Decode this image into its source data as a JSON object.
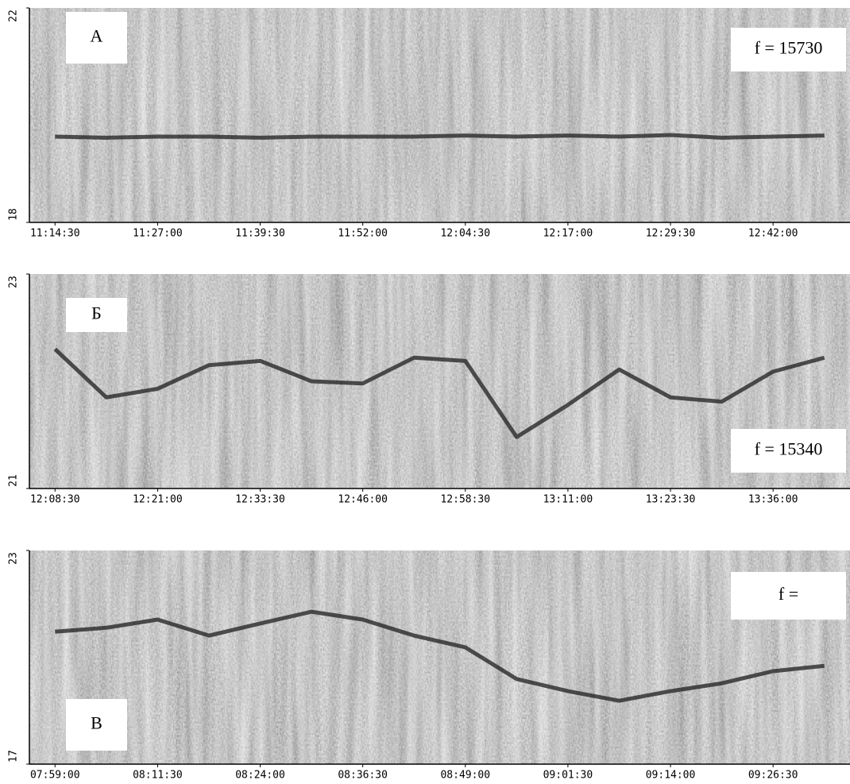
{
  "chart_data": [
    {
      "type": "line",
      "color": "#1e1e1e",
      "categories": [
        "11:14:30",
        null,
        "11:27:00",
        null,
        "11:39:30",
        null,
        "11:52:00",
        null,
        "12:04:30",
        null,
        "12:17:00",
        null,
        "12:29:30",
        null,
        "12:42:00",
        null
      ],
      "values": [
        19.6,
        19.58,
        19.6,
        19.6,
        19.58,
        19.6,
        19.6,
        19.6,
        19.62,
        19.6,
        19.62,
        19.6,
        19.63,
        19.58,
        19.6,
        19.62
      ],
      "ylim": [
        18,
        22
      ],
      "yticks": [
        18,
        22
      ],
      "annotations": [
        "А",
        "f = 15730"
      ]
    },
    {
      "type": "line",
      "color": "#1e1e1e",
      "categories": [
        "12:08:30",
        null,
        "12:21:00",
        null,
        "12:33:30",
        null,
        "12:46:00",
        null,
        "12:58:30",
        null,
        "13:11:00",
        null,
        "13:23:30",
        null,
        "13:36:00",
        null
      ],
      "values": [
        22.3,
        21.85,
        21.93,
        22.15,
        22.19,
        22.0,
        21.98,
        22.22,
        22.19,
        21.48,
        21.78,
        22.11,
        21.85,
        21.81,
        22.09,
        22.22
      ],
      "ylim": [
        21,
        23
      ],
      "yticks": [
        21,
        23
      ],
      "annotations": [
        "Б",
        "f = 15340"
      ]
    },
    {
      "type": "line",
      "color": "#1e1e1e",
      "categories": [
        "07:59:00",
        null,
        "08:11:30",
        null,
        "08:24:00",
        null,
        "08:36:30",
        null,
        "08:49:00",
        null,
        "09:01:30",
        null,
        "09:14:00",
        null,
        "09:26:30",
        null
      ],
      "values": [
        20.72,
        20.83,
        21.06,
        20.61,
        20.95,
        21.28,
        21.06,
        20.61,
        20.28,
        19.39,
        19.05,
        18.78,
        19.05,
        19.27,
        19.61,
        19.76
      ],
      "ylim": [
        17,
        23
      ],
      "yticks": [
        17,
        23
      ],
      "annotations": [
        "f =",
        "В"
      ]
    }
  ]
}
